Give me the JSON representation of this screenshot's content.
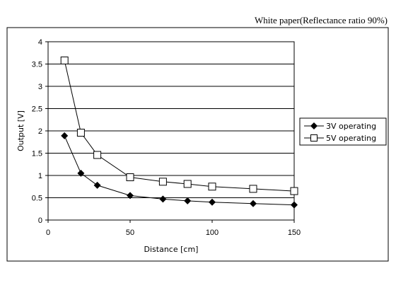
{
  "chart_data": {
    "type": "line",
    "title": "White paper(Reflectance ratio 90%)",
    "xlabel": "Distance [cm]",
    "ylabel": "Output [V]",
    "xlim": [
      0,
      150
    ],
    "ylim": [
      0,
      4
    ],
    "xticks": [
      "0",
      "50",
      "100",
      "150"
    ],
    "yticks": [
      "0",
      "0.5",
      "1",
      "1.5",
      "2",
      "2.5",
      "3",
      "3.5",
      "4"
    ],
    "grid": "horizontal",
    "legend_position": "right",
    "series": [
      {
        "name": "3V operating",
        "marker": "filled-diamond",
        "color": "#000000",
        "x": [
          10,
          20,
          30,
          50,
          70,
          85,
          100,
          125,
          150
        ],
        "y": [
          1.89,
          1.05,
          0.78,
          0.55,
          0.47,
          0.43,
          0.4,
          0.37,
          0.34
        ]
      },
      {
        "name": "5V operating",
        "marker": "open-square",
        "color": "#000000",
        "x": [
          10,
          20,
          30,
          50,
          70,
          85,
          100,
          125,
          150
        ],
        "y": [
          3.58,
          1.96,
          1.46,
          0.96,
          0.86,
          0.81,
          0.75,
          0.7,
          0.65
        ]
      }
    ]
  }
}
